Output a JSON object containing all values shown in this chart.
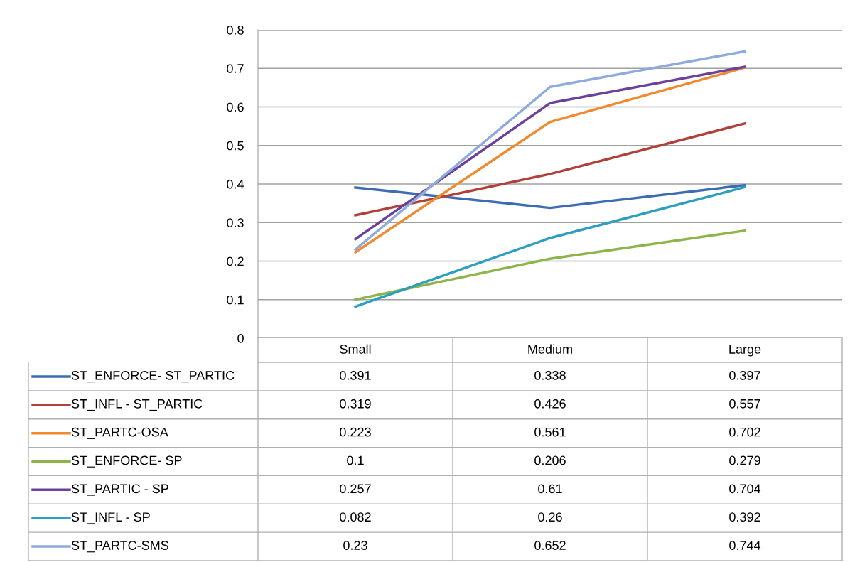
{
  "chart_data": {
    "type": "line",
    "categories": [
      "Small",
      "Medium",
      "Large"
    ],
    "series": [
      {
        "name": "ST_ENFORCE- ST_PARTIC",
        "color": "#3c6db3",
        "values": [
          0.391,
          0.338,
          0.397
        ]
      },
      {
        "name": "ST_INFL - ST_PARTIC",
        "color": "#b0403a",
        "values": [
          0.319,
          0.426,
          0.557
        ]
      },
      {
        "name": "ST_PARTC-OSA",
        "color": "#ef8a2e",
        "values": [
          0.223,
          0.561,
          0.702
        ]
      },
      {
        "name": "ST_ENFORCE- SP",
        "color": "#8db54b",
        "values": [
          0.1,
          0.206,
          0.279
        ]
      },
      {
        "name": "ST_PARTIC - SP",
        "color": "#6a419b",
        "values": [
          0.257,
          0.61,
          0.704
        ]
      },
      {
        "name": "ST_INFL - SP",
        "color": "#2b9fbd",
        "values": [
          0.082,
          0.26,
          0.392
        ]
      },
      {
        "name": "ST_PARTC-SMS",
        "color": "#8faadc",
        "values": [
          0.23,
          0.652,
          0.744
        ]
      }
    ],
    "ylim": [
      0,
      0.8
    ],
    "yticks": [
      0,
      0.1,
      0.2,
      0.3,
      0.4,
      0.5,
      0.6,
      0.7,
      0.8
    ],
    "grid": "y",
    "legend": "bottom",
    "data_labels": true,
    "marker": "none",
    "line_style": "solid"
  }
}
